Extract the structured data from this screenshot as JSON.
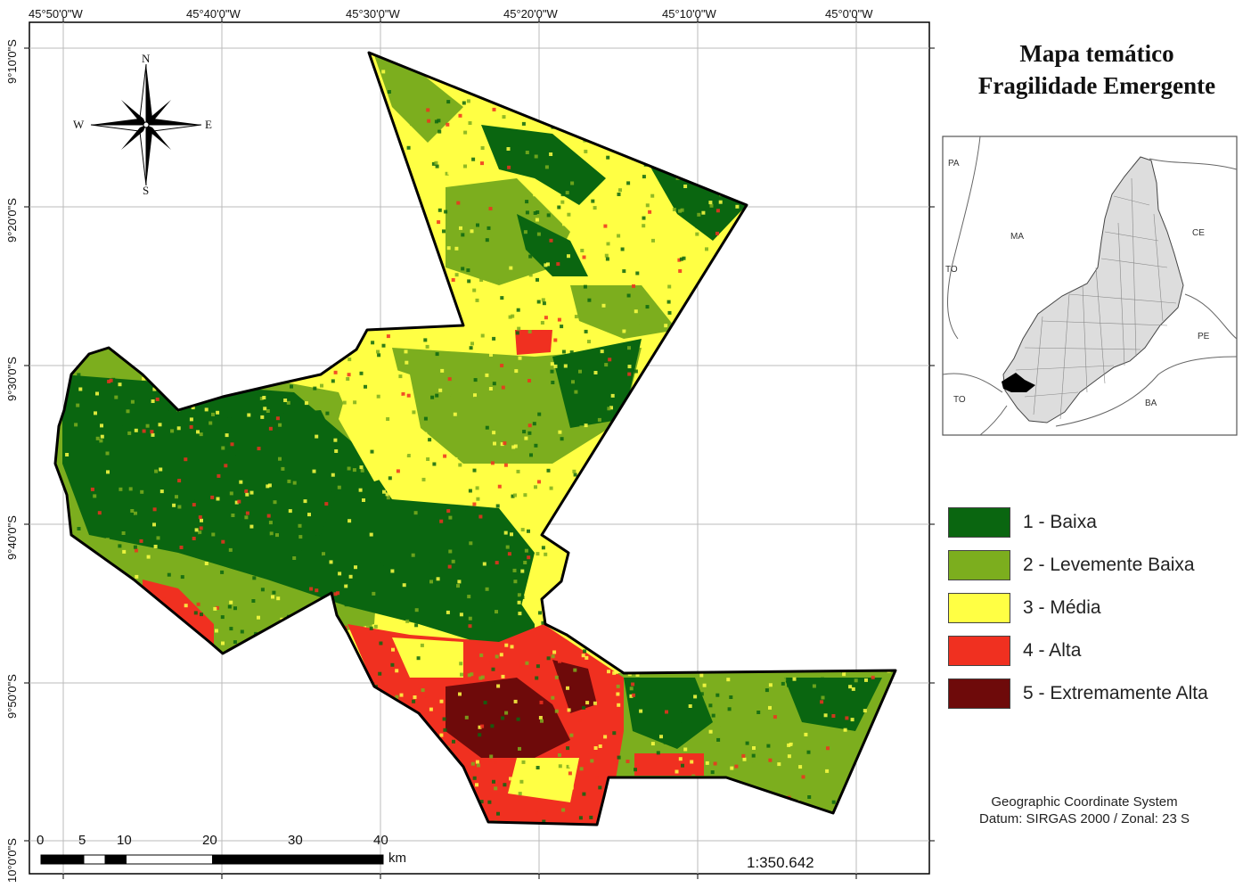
{
  "title": {
    "line1": "Mapa temático",
    "line2": "Fragilidade Emergente"
  },
  "longitude_labels": [
    "45°50'0\"W",
    "45°40'0\"W",
    "45°30'0\"W",
    "45°20'0\"W",
    "45°10'0\"W",
    "45°0'0\"W"
  ],
  "latitude_labels": [
    "9°10'0\"S",
    "9°20'0\"S",
    "9°30'0\"S",
    "9°40'0\"S",
    "9°50'0\"S",
    "10°0'0\"S"
  ],
  "compass": {
    "n": "N",
    "s": "S",
    "e": "E",
    "w": "W"
  },
  "legend": {
    "items": [
      {
        "label": "1 - Baixa",
        "color": "#0a6610"
      },
      {
        "label": "2 - Levemente Baixa",
        "color": "#7cae1e"
      },
      {
        "label": "3 - Média",
        "color": "#ffff44"
      },
      {
        "label": "4 - Alta",
        "color": "#f03020"
      },
      {
        "label": "5 - Extremamente Alta",
        "color": "#6e0a0a"
      }
    ]
  },
  "inset_map": {
    "labels": {
      "pa": "PA",
      "ma": "MA",
      "to_upper": "TO",
      "to_lower": "TO",
      "ce": "CE",
      "pe": "PE",
      "ba": "BA"
    }
  },
  "coordinate_system": {
    "line1": "Geographic Coordinate System",
    "line2": "Datum: SIRGAS 2000 / Zonal: 23 S"
  },
  "scale_bar": {
    "ticks": [
      "0",
      "5",
      "10",
      "20",
      "30",
      "40"
    ],
    "unit": "km"
  },
  "scale_ratio": "1:350.642",
  "colors": {
    "frame": "#000000",
    "grid": "#bbbbbb",
    "inset_fill": "#dddddd",
    "highlight": "#000000"
  }
}
